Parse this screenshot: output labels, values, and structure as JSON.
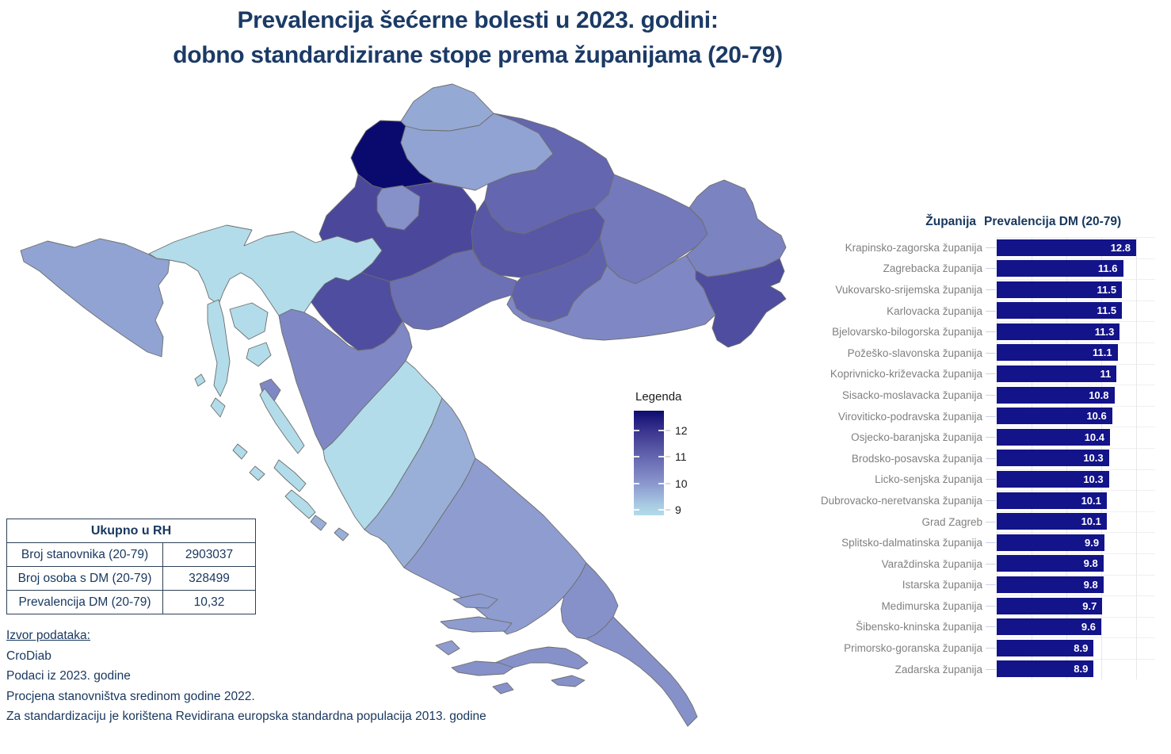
{
  "title": {
    "line1": "Prevalencija šećerne bolesti u 2023. godini:",
    "line2": "dobno standardizirane stope prema županijama (20-79)",
    "color": "#1B3A66"
  },
  "legend": {
    "title": "Legenda",
    "ticks": [
      12,
      11,
      10,
      9
    ],
    "scale_top_value": 12.76,
    "scale_bottom_value": 8.78
  },
  "summary_table": {
    "header": "Ukupno u RH",
    "rows": [
      {
        "label": "Broj stanovnika (20-79)",
        "value": "2903037"
      },
      {
        "label": "Broj osoba s DM (20-79)",
        "value": "328499"
      },
      {
        "label": "Prevalencija DM (20-79)",
        "value": "10,32"
      }
    ]
  },
  "source_notes": {
    "heading": "Izvor podataka:",
    "lines": [
      "CroDiab",
      "Podaci iz 2023. godine",
      "Procjena stanovništva sredinom godine 2022.",
      "Za standardizaciju je korištena Revidirana europska standardna populacija 2013. godine"
    ]
  },
  "chart_data": {
    "type": "bar",
    "orientation": "horizontal",
    "col_headers": [
      "Županija",
      "Prevalencija DM (20-79)"
    ],
    "xlim": [
      0,
      12.8
    ],
    "grid": true,
    "bar_color": "#13138a",
    "label_color": "#808080",
    "value_label_color": "#ffffff",
    "rows": [
      {
        "map_id": "krapinsko",
        "name": "Krapinsko-zagorska županija",
        "value": 12.8,
        "display": "12.8"
      },
      {
        "map_id": "zagrebacka",
        "name": "Zagrebacka županija",
        "value": 11.6,
        "display": "11.6"
      },
      {
        "map_id": "vukovarsko",
        "name": "Vukovarsko-srijemska županija",
        "value": 11.5,
        "display": "11.5"
      },
      {
        "map_id": "karlovacka",
        "name": "Karlovacka županija",
        "value": 11.5,
        "display": "11.5"
      },
      {
        "map_id": "bjelovarsko",
        "name": "Bjelovarsko-bilogorska županija",
        "value": 11.3,
        "display": "11.3"
      },
      {
        "map_id": "pozesko",
        "name": "Požeško-slavonska županija",
        "value": 11.1,
        "display": "11.1"
      },
      {
        "map_id": "koprivnicko",
        "name": "Koprivnicko-križevacka županija",
        "value": 11,
        "display": "11"
      },
      {
        "map_id": "sisacko",
        "name": "Sisacko-moslavacka županija",
        "value": 10.8,
        "display": "10.8"
      },
      {
        "map_id": "viroviticko",
        "name": "Viroviticko-podravska županija",
        "value": 10.6,
        "display": "10.6"
      },
      {
        "map_id": "osjecko",
        "name": "Osjecko-baranjska županija",
        "value": 10.4,
        "display": "10.4"
      },
      {
        "map_id": "brodsko",
        "name": "Brodsko-posavska županija",
        "value": 10.3,
        "display": "10.3"
      },
      {
        "map_id": "licko",
        "name": "Licko-senjska županija",
        "value": 10.3,
        "display": "10.3"
      },
      {
        "map_id": "dubrovacko",
        "name": "Dubrovacko-neretvanska županija",
        "value": 10.1,
        "display": "10.1"
      },
      {
        "map_id": "grad-zagreb",
        "name": "Grad Zagreb",
        "value": 10.1,
        "display": "10.1"
      },
      {
        "map_id": "splitsko",
        "name": "Splitsko-dalmatinska županija",
        "value": 9.9,
        "display": "9.9"
      },
      {
        "map_id": "varazdinska",
        "name": "Varaždinska županija",
        "value": 9.8,
        "display": "9.8"
      },
      {
        "map_id": "istarska",
        "name": "Istarska županija",
        "value": 9.8,
        "display": "9.8"
      },
      {
        "map_id": "medimurska",
        "name": "Medimurska županija",
        "value": 9.7,
        "display": "9.7"
      },
      {
        "map_id": "sibensko",
        "name": "Šibensko-kninska županija",
        "value": 9.6,
        "display": "9.6"
      },
      {
        "map_id": "primorsko",
        "name": "Primorsko-goranska županija",
        "value": 8.9,
        "display": "8.9"
      },
      {
        "map_id": "zadarska",
        "name": "Zadarska županija",
        "value": 8.9,
        "display": "8.9"
      }
    ],
    "color_scale_stops": [
      [
        8.9,
        "#B2DCE9"
      ],
      [
        10.0,
        "#8A96CD"
      ],
      [
        11.0,
        "#6466AF"
      ],
      [
        12.0,
        "#3A348E"
      ],
      [
        12.8,
        "#0A0A6E"
      ]
    ]
  }
}
